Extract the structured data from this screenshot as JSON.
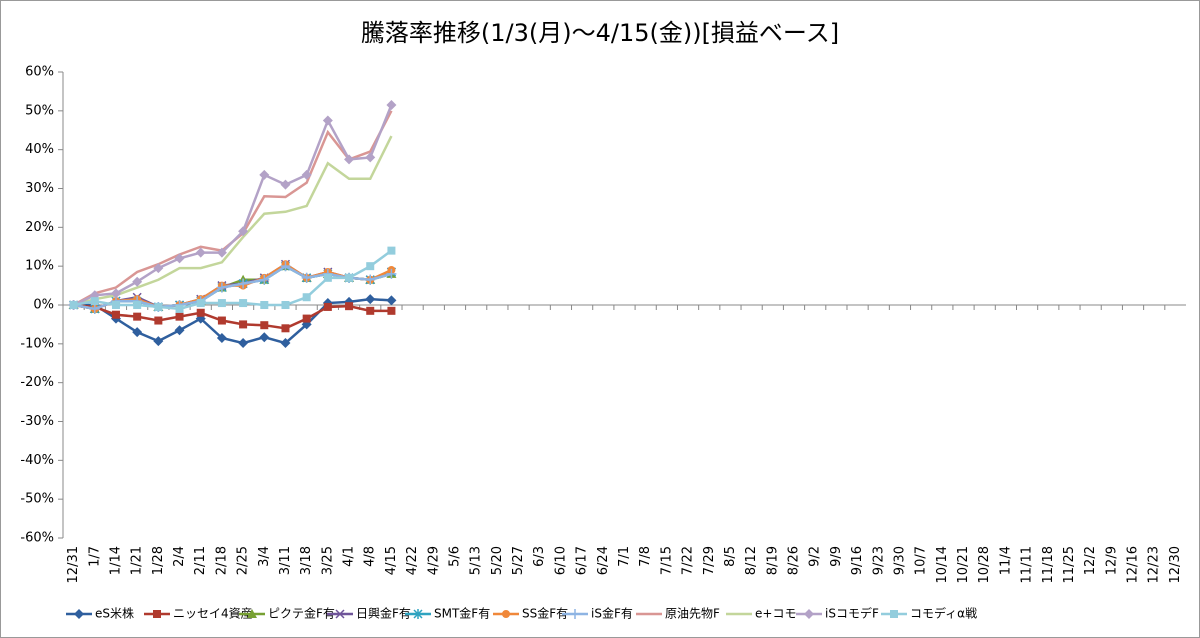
{
  "chart_data": {
    "type": "line",
    "title": "騰落率推移(1/3(月)～4/15(金))[損益ベース]",
    "categories": [
      "12/31",
      "1/7",
      "1/14",
      "1/21",
      "1/28",
      "2/4",
      "2/11",
      "2/18",
      "2/25",
      "3/4",
      "3/11",
      "3/18",
      "3/25",
      "4/1",
      "4/8",
      "4/15",
      "4/22",
      "4/29",
      "5/6",
      "5/13",
      "5/20",
      "5/27",
      "6/3",
      "6/10",
      "6/17",
      "6/24",
      "7/1",
      "7/8",
      "7/15",
      "7/22",
      "7/29",
      "8/5",
      "8/12",
      "8/19",
      "8/26",
      "9/2",
      "9/9",
      "9/16",
      "9/23",
      "9/30",
      "10/7",
      "10/14",
      "10/21",
      "10/28",
      "11/4",
      "11/11",
      "11/18",
      "11/25",
      "12/2",
      "12/9",
      "12/16",
      "12/23",
      "12/30"
    ],
    "ylim": [
      -60,
      60
    ],
    "yticks": [
      {
        "value": -60,
        "label": "-60%"
      },
      {
        "value": -50,
        "label": "-50%"
      },
      {
        "value": -40,
        "label": "-40%"
      },
      {
        "value": -30,
        "label": "-30%"
      },
      {
        "value": -20,
        "label": "-20%"
      },
      {
        "value": -10,
        "label": "-10%"
      },
      {
        "value": 0,
        "label": "0%"
      },
      {
        "value": 10,
        "label": "10%"
      },
      {
        "value": 20,
        "label": "20%"
      },
      {
        "value": 30,
        "label": "30%"
      },
      {
        "value": 40,
        "label": "40%"
      },
      {
        "value": 50,
        "label": "50%"
      },
      {
        "value": 60,
        "label": "60%"
      }
    ],
    "grid": false,
    "legend": "bottom",
    "series": [
      {
        "name": "eS米株",
        "color": "#2f5f9e",
        "marker": "diamond",
        "values": [
          0,
          0,
          -3.5,
          -7,
          -9.3,
          -6.5,
          -3.5,
          -8.5,
          -9.8,
          -8.3,
          -9.8,
          -5,
          0.5,
          0.8,
          1.5,
          1.2,
          null,
          null,
          null,
          null,
          null,
          null,
          null,
          null,
          null,
          null,
          null,
          null,
          null,
          null,
          null,
          null,
          null,
          null,
          null,
          null,
          null,
          null,
          null,
          null,
          null,
          null,
          null,
          null,
          null,
          null,
          null,
          null,
          null,
          null,
          null,
          null,
          null
        ]
      },
      {
        "name": "ニッセイ4資産",
        "color": "#b03a2e",
        "marker": "square",
        "values": [
          0,
          -0.5,
          -2.5,
          -3,
          -4,
          -3,
          -2,
          -4,
          -5,
          -5.2,
          -6,
          -3.5,
          -0.5,
          -0.3,
          -1.5,
          -1.5,
          null,
          null,
          null,
          null,
          null,
          null,
          null,
          null,
          null,
          null,
          null,
          null,
          null,
          null,
          null,
          null,
          null,
          null,
          null,
          null,
          null,
          null,
          null,
          null,
          null,
          null,
          null,
          null,
          null,
          null,
          null,
          null,
          null,
          null,
          null,
          null,
          null
        ]
      },
      {
        "name": "ピクテ金F有",
        "color": "#77a033",
        "marker": "triangle",
        "values": [
          0,
          -1,
          1,
          1,
          -0.5,
          0,
          1,
          4.5,
          6.5,
          6.5,
          10,
          7,
          8,
          7,
          6.5,
          8,
          null,
          null,
          null,
          null,
          null,
          null,
          null,
          null,
          null,
          null,
          null,
          null,
          null,
          null,
          null,
          null,
          null,
          null,
          null,
          null,
          null,
          null,
          null,
          null,
          null,
          null,
          null,
          null,
          null,
          null,
          null,
          null,
          null,
          null,
          null,
          null,
          null
        ]
      },
      {
        "name": "日興金F有",
        "color": "#6f5499",
        "marker": "x",
        "values": [
          0,
          -1,
          1,
          2,
          -0.5,
          0,
          1.5,
          5,
          5.5,
          7,
          10.5,
          7,
          8.5,
          7,
          6.5,
          8.5,
          null,
          null,
          null,
          null,
          null,
          null,
          null,
          null,
          null,
          null,
          null,
          null,
          null,
          null,
          null,
          null,
          null,
          null,
          null,
          null,
          null,
          null,
          null,
          null,
          null,
          null,
          null,
          null,
          null,
          null,
          null,
          null,
          null,
          null,
          null,
          null,
          null
        ]
      },
      {
        "name": "SMT金F有",
        "color": "#2fa3c0",
        "marker": "star",
        "values": [
          0,
          -1,
          1,
          1,
          -0.5,
          0,
          1,
          4.5,
          5.5,
          6.5,
          10,
          7,
          8,
          7,
          6.5,
          8.5,
          null,
          null,
          null,
          null,
          null,
          null,
          null,
          null,
          null,
          null,
          null,
          null,
          null,
          null,
          null,
          null,
          null,
          null,
          null,
          null,
          null,
          null,
          null,
          null,
          null,
          null,
          null,
          null,
          null,
          null,
          null,
          null,
          null,
          null,
          null,
          null,
          null
        ]
      },
      {
        "name": "SS金F有",
        "color": "#f0883a",
        "marker": "circle",
        "values": [
          0,
          -1,
          1,
          1.5,
          -0.5,
          0,
          1.5,
          5,
          5,
          7,
          10.5,
          7,
          8.5,
          7,
          6.5,
          9,
          null,
          null,
          null,
          null,
          null,
          null,
          null,
          null,
          null,
          null,
          null,
          null,
          null,
          null,
          null,
          null,
          null,
          null,
          null,
          null,
          null,
          null,
          null,
          null,
          null,
          null,
          null,
          null,
          null,
          null,
          null,
          null,
          null,
          null,
          null,
          null,
          null
        ]
      },
      {
        "name": "iS金F有",
        "color": "#8eb4e3",
        "marker": "plus",
        "values": [
          0,
          -1,
          1,
          1,
          -0.5,
          0,
          1,
          4.5,
          5.5,
          6.5,
          10,
          7,
          8,
          7,
          6.5,
          8,
          null,
          null,
          null,
          null,
          null,
          null,
          null,
          null,
          null,
          null,
          null,
          null,
          null,
          null,
          null,
          null,
          null,
          null,
          null,
          null,
          null,
          null,
          null,
          null,
          null,
          null,
          null,
          null,
          null,
          null,
          null,
          null,
          null,
          null,
          null,
          null,
          null
        ]
      },
      {
        "name": "原油先物F",
        "color": "#d99694",
        "marker": "none",
        "values": [
          0,
          3,
          4.5,
          8.5,
          10.5,
          13,
          15,
          14,
          18.5,
          28,
          27.8,
          31.5,
          44.5,
          37.5,
          39.5,
          50,
          null,
          null,
          null,
          null,
          null,
          null,
          null,
          null,
          null,
          null,
          null,
          null,
          null,
          null,
          null,
          null,
          null,
          null,
          null,
          null,
          null,
          null,
          null,
          null,
          null,
          null,
          null,
          null,
          null,
          null,
          null,
          null,
          null,
          null,
          null,
          null,
          null
        ]
      },
      {
        "name": "e+コモ",
        "color": "#c3d69b",
        "marker": "none",
        "values": [
          0,
          1.5,
          2.5,
          4.5,
          6.5,
          9.5,
          9.5,
          11,
          17.5,
          23.5,
          24,
          25.5,
          36.5,
          32.5,
          32.5,
          43.5,
          null,
          null,
          null,
          null,
          null,
          null,
          null,
          null,
          null,
          null,
          null,
          null,
          null,
          null,
          null,
          null,
          null,
          null,
          null,
          null,
          null,
          null,
          null,
          null,
          null,
          null,
          null,
          null,
          null,
          null,
          null,
          null,
          null,
          null,
          null,
          null,
          null
        ]
      },
      {
        "name": "iSコモデF",
        "color": "#b3a2c7",
        "marker": "diamond",
        "values": [
          0,
          2.5,
          3,
          6,
          9.5,
          12,
          13.5,
          13.5,
          19,
          33.5,
          31,
          33.5,
          47.5,
          37.5,
          38,
          51.5,
          null,
          null,
          null,
          null,
          null,
          null,
          null,
          null,
          null,
          null,
          null,
          null,
          null,
          null,
          null,
          null,
          null,
          null,
          null,
          null,
          null,
          null,
          null,
          null,
          null,
          null,
          null,
          null,
          null,
          null,
          null,
          null,
          null,
          null,
          null,
          null,
          null
        ]
      },
      {
        "name": "コモディα戦",
        "color": "#93cddd",
        "marker": "square",
        "values": [
          0,
          1,
          0,
          0,
          -0.5,
          -1,
          0.5,
          0.5,
          0.5,
          0,
          0,
          2,
          7,
          7,
          10,
          14,
          null,
          null,
          null,
          null,
          null,
          null,
          null,
          null,
          null,
          null,
          null,
          null,
          null,
          null,
          null,
          null,
          null,
          null,
          null,
          null,
          null,
          null,
          null,
          null,
          null,
          null,
          null,
          null,
          null,
          null,
          null,
          null,
          null,
          null,
          null,
          null,
          null
        ]
      }
    ]
  }
}
